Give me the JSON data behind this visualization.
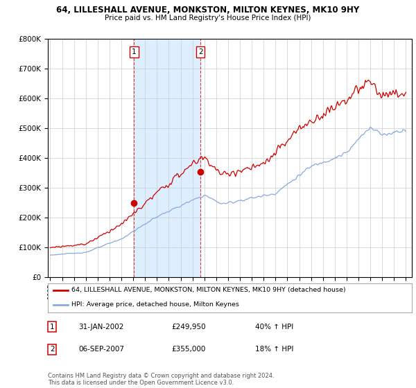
{
  "title1": "64, LILLESHALL AVENUE, MONKSTON, MILTON KEYNES, MK10 9HY",
  "title2": "Price paid vs. HM Land Registry's House Price Index (HPI)",
  "legend_line1": "64, LILLESHALL AVENUE, MONKSTON, MILTON KEYNES, MK10 9HY (detached house)",
  "legend_line2": "HPI: Average price, detached house, Milton Keynes",
  "sale1_date": "31-JAN-2002",
  "sale1_price": "£249,950",
  "sale1_hpi": "40% ↑ HPI",
  "sale2_date": "06-SEP-2007",
  "sale2_price": "£355,000",
  "sale2_hpi": "18% ↑ HPI",
  "footer": "Contains HM Land Registry data © Crown copyright and database right 2024.\nThis data is licensed under the Open Government Licence v3.0.",
  "price_color": "#cc0000",
  "hpi_color": "#88aadd",
  "shade_color": "#ddeeff",
  "sale1_x": 2002.08,
  "sale1_y": 249950,
  "sale2_x": 2007.67,
  "sale2_y": 355000,
  "ylim": [
    0,
    800000
  ],
  "xlim": [
    1994.8,
    2025.5
  ],
  "yticks": [
    0,
    100000,
    200000,
    300000,
    400000,
    500000,
    600000,
    700000,
    800000
  ],
  "background_color": "#ffffff"
}
